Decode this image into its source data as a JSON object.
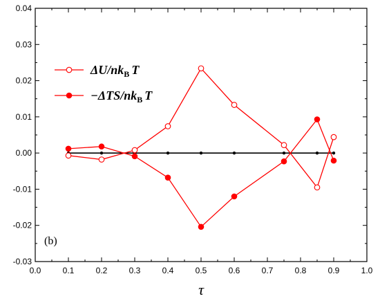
{
  "chart_data": {
    "type": "line",
    "title": "",
    "panel_label": "(b)",
    "xlabel": "τ",
    "ylabel": "",
    "xlim": [
      0.0,
      1.0
    ],
    "ylim": [
      -0.03,
      0.04
    ],
    "x_ticks": [
      "0.0",
      "0.1",
      "0.2",
      "0.3",
      "0.4",
      "0.5",
      "0.6",
      "0.7",
      "0.8",
      "0.9",
      "1.0"
    ],
    "y_ticks": [
      "-0.03",
      "-0.02",
      "-0.01",
      "0.00",
      "0.01",
      "0.02",
      "0.03",
      "0.04"
    ],
    "x": [
      0.1,
      0.2,
      0.3,
      0.4,
      0.5,
      0.6,
      0.75,
      0.85,
      0.9
    ],
    "series": [
      {
        "legend_main": "ΔU/nk",
        "legend_sub": "B",
        "legend_tail": "T",
        "marker": "open-circle",
        "color": "#ff0000",
        "values": [
          -0.0007,
          -0.0018,
          0.0008,
          0.0074,
          0.0234,
          0.0133,
          0.0022,
          -0.0095,
          0.0044
        ]
      },
      {
        "legend_main": "−ΔTS/nk",
        "legend_sub": "B",
        "legend_tail": "T",
        "marker": "filled-circle",
        "color": "#ff0000",
        "values": [
          0.0012,
          0.0018,
          -0.0009,
          -0.0068,
          -0.0204,
          -0.012,
          -0.0023,
          0.0093,
          -0.0021
        ]
      },
      {
        "marker": "small-filled-circle",
        "color": "#000000",
        "values": [
          0,
          0,
          0,
          0,
          0,
          0,
          0,
          0,
          0
        ]
      }
    ],
    "legend_position": "top-left",
    "grid": false
  }
}
